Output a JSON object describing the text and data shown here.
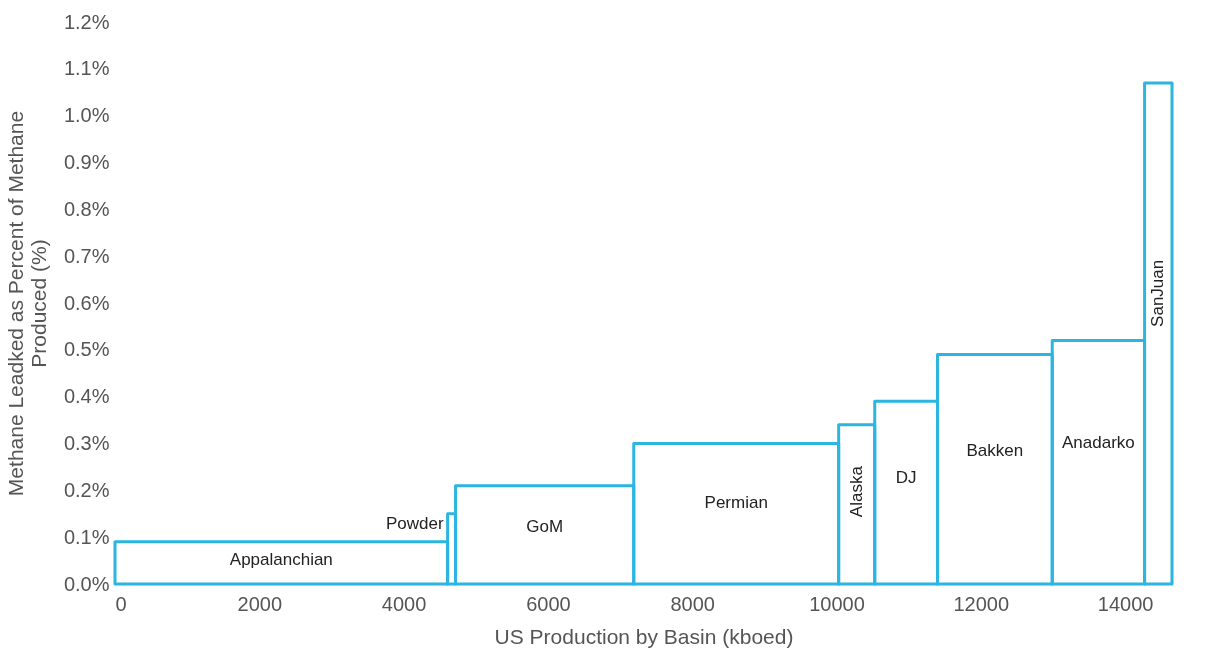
{
  "chart_data": {
    "type": "histogram",
    "xlabel": "US Production by Basin (kboed)",
    "ylabel": "Methane Leadked as Percent of Methane Produced (%)",
    "bins": [
      0,
      4610,
      4720,
      7190,
      10030,
      10530,
      11400,
      12990,
      14270,
      14650
    ],
    "values": [
      0.09,
      0.15,
      0.21,
      0.3,
      0.34,
      0.39,
      0.49,
      0.52,
      1.07
    ],
    "color": "#2bb5e0",
    "xlim": [
      0,
      14650
    ],
    "xticks": [
      0,
      2000,
      4000,
      6000,
      8000,
      10000,
      12000,
      14000
    ],
    "ylim": [
      0,
      1.2
    ],
    "yticks": [
      {
        "value": 0,
        "label": "0.0%"
      },
      {
        "value": 0.1,
        "label": "0.1%"
      },
      {
        "value": 0.2,
        "label": "0.2%"
      },
      {
        "value": 0.3,
        "label": "0.3%"
      },
      {
        "value": 0.4,
        "label": "0.4%"
      },
      {
        "value": 0.5,
        "label": "0.5%"
      },
      {
        "value": 0.6,
        "label": "0.6%"
      },
      {
        "value": 0.7,
        "label": "0.7%"
      },
      {
        "value": 0.8,
        "label": "0.8%"
      },
      {
        "value": 0.9,
        "label": "0.9%"
      },
      {
        "value": 1.0,
        "label": "1.0%"
      },
      {
        "value": 1.1,
        "label": "1.1%"
      },
      {
        "value": 1.2,
        "label": "1.2%"
      }
    ],
    "grid": false,
    "annotations": [
      "Appalanchian",
      "Powder",
      "GoM",
      "Permian",
      "Alaska",
      "DJ",
      "Bakken",
      "Anadarko",
      "SanJuan"
    ]
  }
}
